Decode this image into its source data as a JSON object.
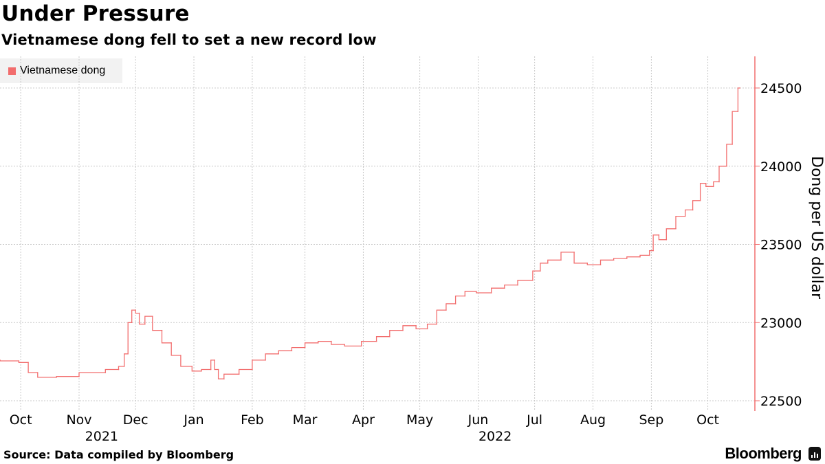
{
  "title": "Under Pressure",
  "subtitle": "Vietnamese dong fell to set a new record low",
  "legend": {
    "label": "Vietnamese dong"
  },
  "source": "Source: Data compiled by Bloomberg",
  "brand": "Bloomberg",
  "colors": {
    "series": "#f26d6d",
    "grid": "#c8c8c8",
    "axis": "#f26d6d",
    "legend_bg": "#f2f2f2",
    "text": "#000000"
  },
  "chart_data": {
    "type": "line",
    "title": "Under Pressure",
    "subtitle": "Vietnamese dong fell to set a new record low",
    "xlabel": "",
    "ylabel": "Dong per US dollar",
    "ylim": [
      22500,
      24500
    ],
    "yticks": [
      22500,
      23000,
      23500,
      24000,
      24500
    ],
    "x_ticks": [
      {
        "date": "2021-10-01",
        "label": "Oct"
      },
      {
        "date": "2021-11-01",
        "label": "Nov"
      },
      {
        "date": "2021-12-01",
        "label": "Dec"
      },
      {
        "date": "2022-01-01",
        "label": "Jan"
      },
      {
        "date": "2022-02-01",
        "label": "Feb"
      },
      {
        "date": "2022-03-01",
        "label": "Mar"
      },
      {
        "date": "2022-04-01",
        "label": "Apr"
      },
      {
        "date": "2022-05-01",
        "label": "May"
      },
      {
        "date": "2022-06-01",
        "label": "Jun"
      },
      {
        "date": "2022-07-01",
        "label": "Jul"
      },
      {
        "date": "2022-08-01",
        "label": "Aug"
      },
      {
        "date": "2022-09-01",
        "label": "Sep"
      },
      {
        "date": "2022-10-01",
        "label": "Oct"
      }
    ],
    "year_labels": [
      {
        "date": "2021-11-13",
        "label": "2021"
      },
      {
        "date": "2022-06-10",
        "label": "2022"
      }
    ],
    "grid": true,
    "legend_position": "top-left",
    "series": [
      {
        "name": "Vietnamese dong",
        "x": [
          "2021-09-20",
          "2021-09-30",
          "2021-10-05",
          "2021-10-10",
          "2021-10-20",
          "2021-11-01",
          "2021-11-15",
          "2021-11-22",
          "2021-11-25",
          "2021-11-27",
          "2021-11-29",
          "2021-12-01",
          "2021-12-03",
          "2021-12-06",
          "2021-12-10",
          "2021-12-15",
          "2021-12-20",
          "2021-12-25",
          "2021-12-31",
          "2022-01-05",
          "2022-01-10",
          "2022-01-12",
          "2022-01-14",
          "2022-01-17",
          "2022-01-25",
          "2022-02-01",
          "2022-02-08",
          "2022-02-15",
          "2022-02-22",
          "2022-03-01",
          "2022-03-08",
          "2022-03-15",
          "2022-03-22",
          "2022-03-31",
          "2022-04-08",
          "2022-04-15",
          "2022-04-22",
          "2022-04-29",
          "2022-05-05",
          "2022-05-10",
          "2022-05-15",
          "2022-05-20",
          "2022-05-25",
          "2022-05-31",
          "2022-06-08",
          "2022-06-15",
          "2022-06-22",
          "2022-06-30",
          "2022-07-04",
          "2022-07-08",
          "2022-07-15",
          "2022-07-22",
          "2022-07-29",
          "2022-08-05",
          "2022-08-12",
          "2022-08-19",
          "2022-08-26",
          "2022-08-31",
          "2022-09-02",
          "2022-09-05",
          "2022-09-09",
          "2022-09-14",
          "2022-09-19",
          "2022-09-23",
          "2022-09-27",
          "2022-09-30",
          "2022-10-04",
          "2022-10-07",
          "2022-10-11",
          "2022-10-14",
          "2022-10-17",
          "2022-10-18"
        ],
        "values": [
          22760,
          22755,
          22745,
          22680,
          22650,
          22655,
          22680,
          22700,
          22720,
          22800,
          23000,
          23080,
          23060,
          22990,
          23040,
          22950,
          22870,
          22790,
          22720,
          22690,
          22700,
          22760,
          22700,
          22640,
          22670,
          22700,
          22760,
          22800,
          22820,
          22840,
          22870,
          22880,
          22860,
          22850,
          22880,
          22910,
          22950,
          22980,
          22960,
          22990,
          23080,
          23120,
          23170,
          23200,
          23190,
          23220,
          23240,
          23270,
          23330,
          23380,
          23400,
          23450,
          23380,
          23370,
          23400,
          23410,
          23420,
          23430,
          23460,
          23560,
          23530,
          23600,
          23680,
          23720,
          23780,
          23890,
          23870,
          23900,
          24000,
          24140,
          24350,
          24500
        ]
      }
    ]
  }
}
